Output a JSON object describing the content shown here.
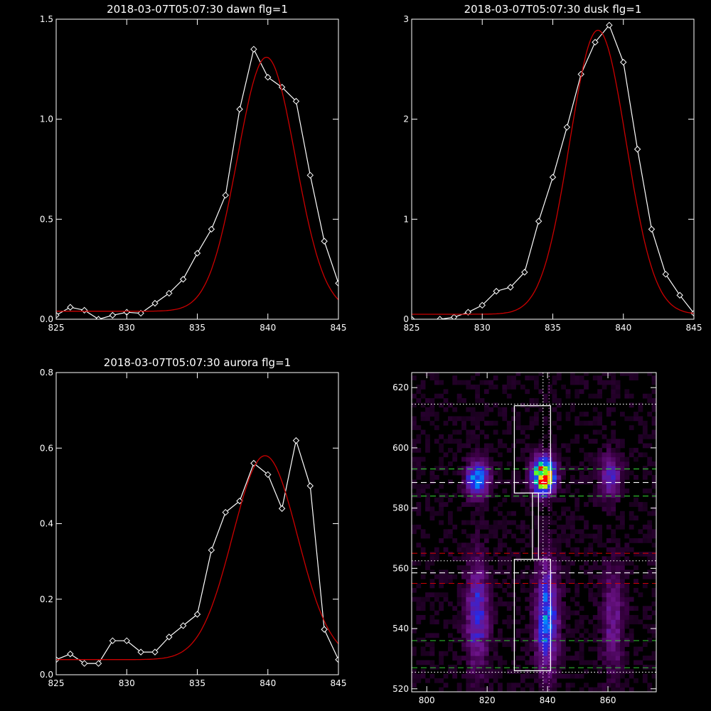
{
  "chart_data": [
    {
      "type": "line",
      "title": "2018-03-07T05:07:30 dawn flg=1",
      "xlim": [
        825,
        845
      ],
      "ylim": [
        0,
        1.5
      ],
      "xticks": [
        "825",
        "830",
        "835",
        "840",
        "845"
      ],
      "yticks": [
        "0.0",
        "0.5",
        "1.0",
        "1.5"
      ],
      "series": [
        {
          "color": "#ffffff",
          "marker": "diamond",
          "x": [
            825,
            826,
            827,
            828,
            829,
            830,
            831,
            832,
            833,
            834,
            835,
            836,
            837,
            838,
            839,
            840,
            841,
            842,
            843,
            844,
            845
          ],
          "y": [
            0.02,
            0.06,
            0.045,
            0.0,
            0.02,
            0.035,
            0.03,
            0.08,
            0.13,
            0.2,
            0.33,
            0.45,
            0.62,
            1.05,
            1.35,
            1.21,
            1.16,
            1.09,
            0.72,
            0.39,
            0.18
          ]
        },
        {
          "color": "#cc0000",
          "marker": "none",
          "gauss": {
            "a": 1.27,
            "mu": 839.9,
            "sigma": 2.05,
            "c": 0.04
          }
        }
      ]
    },
    {
      "type": "line",
      "title": "2018-03-07T05:07:30 dusk flg=1",
      "xlim": [
        825,
        845
      ],
      "ylim": [
        0,
        3
      ],
      "xticks": [
        "825",
        "830",
        "835",
        "840",
        "845"
      ],
      "yticks": [
        "0",
        "1",
        "2",
        "3"
      ],
      "series": [
        {
          "color": "#ffffff",
          "marker": "diamond",
          "x": [
            825,
            826,
            827,
            828,
            829,
            830,
            831,
            832,
            833,
            834,
            835,
            836,
            837,
            838,
            839,
            840,
            841,
            842,
            843,
            844,
            845
          ],
          "y": [
            0.0,
            -0.03,
            0.0,
            0.02,
            0.07,
            0.14,
            0.28,
            0.32,
            0.47,
            0.98,
            1.42,
            1.92,
            2.45,
            2.77,
            2.94,
            2.57,
            1.7,
            0.9,
            0.45,
            0.24,
            0.06
          ]
        },
        {
          "color": "#cc0000",
          "marker": "none",
          "gauss": {
            "a": 2.84,
            "mu": 838.2,
            "sigma": 2.0,
            "c": 0.05
          }
        }
      ]
    },
    {
      "type": "line",
      "title": "2018-03-07T05:07:30 aurora flg=1",
      "xlim": [
        825,
        845
      ],
      "ylim": [
        0,
        0.8
      ],
      "xticks": [
        "825",
        "830",
        "835",
        "840",
        "845"
      ],
      "yticks": [
        "0.0",
        "0.2",
        "0.4",
        "0.6",
        "0.8"
      ],
      "series": [
        {
          "color": "#ffffff",
          "marker": "diamond",
          "x": [
            825,
            826,
            827,
            828,
            829,
            830,
            831,
            832,
            833,
            834,
            835,
            836,
            837,
            838,
            839,
            840,
            841,
            842,
            843,
            844,
            845
          ],
          "y": [
            0.04,
            0.055,
            0.03,
            0.03,
            0.09,
            0.09,
            0.06,
            0.06,
            0.1,
            0.13,
            0.16,
            0.33,
            0.43,
            0.46,
            0.56,
            0.53,
            0.44,
            0.62,
            0.5,
            0.12,
            0.04
          ]
        },
        {
          "color": "#cc0000",
          "marker": "none",
          "gauss": {
            "a": 0.54,
            "mu": 839.8,
            "sigma": 2.3,
            "c": 0.04
          }
        }
      ]
    },
    {
      "type": "heatmap",
      "title": "",
      "xlim": [
        795,
        876
      ],
      "ylim": [
        519,
        625
      ],
      "xticks": [
        "800",
        "820",
        "840",
        "860"
      ],
      "yticks": [
        "520",
        "540",
        "560",
        "580",
        "600",
        "620"
      ],
      "colormap": "rainbow-on-black",
      "blobs": [
        {
          "x": 816,
          "y": 589,
          "sx": 2.5,
          "sy": 4,
          "amp": 0.55
        },
        {
          "x": 838,
          "y": 590,
          "sx": 2.5,
          "sy": 4,
          "amp": 1.0
        },
        {
          "x": 860,
          "y": 590,
          "sx": 2.5,
          "sy": 5,
          "amp": 0.3
        },
        {
          "x": 816,
          "y": 544,
          "sx": 2.5,
          "sy": 12,
          "amp": 0.35
        },
        {
          "x": 839,
          "y": 543,
          "sx": 2.5,
          "sy": 12,
          "amp": 0.48
        },
        {
          "x": 861,
          "y": 542,
          "sx": 2.5,
          "sy": 12,
          "amp": 0.22
        }
      ],
      "boxes": [
        {
          "x0": 829,
          "x1": 841,
          "y0": 585,
          "y1": 614
        },
        {
          "x0": 835,
          "x1": 837,
          "y0": 563,
          "y1": 585
        },
        {
          "x0": 829,
          "x1": 841,
          "y0": 526,
          "y1": 563
        }
      ],
      "hlines": [
        {
          "y": 614.5,
          "color": "#ffffff",
          "style": "dotted"
        },
        {
          "y": 593,
          "color": "#33cc33",
          "style": "dashed"
        },
        {
          "y": 588.5,
          "color": "#ffffff",
          "style": "dashed"
        },
        {
          "y": 584,
          "color": "#33cc33",
          "style": "dashed"
        },
        {
          "y": 565,
          "color": "#cc0000",
          "style": "dashed"
        },
        {
          "y": 562.5,
          "color": "#ffffff",
          "style": "dotted"
        },
        {
          "y": 558.5,
          "color": "#ffffff",
          "style": "dashed"
        },
        {
          "y": 555,
          "color": "#cc0000",
          "style": "dashed"
        },
        {
          "y": 536,
          "color": "#33cc33",
          "style": "dashed"
        },
        {
          "y": 527,
          "color": "#33cc33",
          "style": "dashed"
        },
        {
          "y": 525.5,
          "color": "#ffffff",
          "style": "dotted"
        }
      ],
      "vlines": [
        {
          "x": 838.5,
          "color": "#ffffff",
          "style": "dotted"
        },
        {
          "x": 840.5,
          "color": "#cc66cc",
          "style": "dotted"
        }
      ]
    }
  ]
}
